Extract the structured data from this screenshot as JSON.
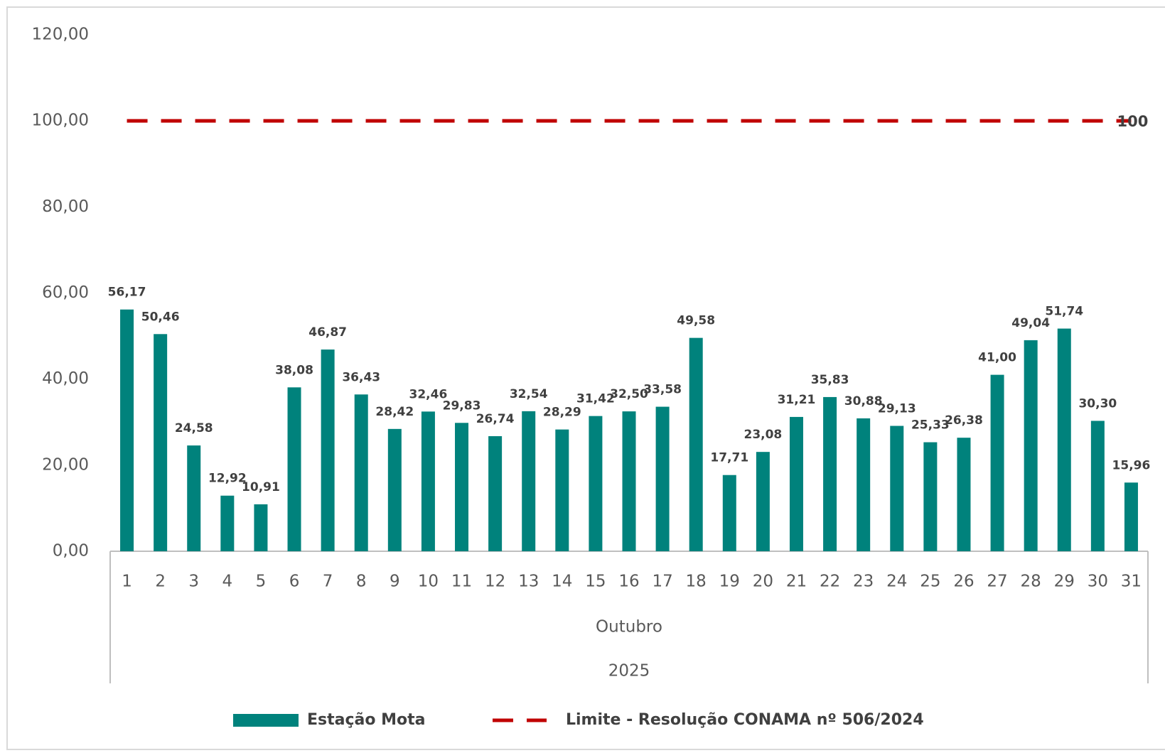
{
  "chart_data": {
    "type": "bar",
    "categories": [
      "1",
      "2",
      "3",
      "4",
      "5",
      "6",
      "7",
      "8",
      "9",
      "10",
      "11",
      "12",
      "13",
      "14",
      "15",
      "16",
      "17",
      "18",
      "19",
      "20",
      "21",
      "22",
      "23",
      "24",
      "25",
      "26",
      "27",
      "28",
      "29",
      "30",
      "31"
    ],
    "category_group": "Outubro",
    "category_year": "2025",
    "series": [
      {
        "name": "Estação Mota",
        "type": "bar",
        "color": "#00827c",
        "values": [
          56.17,
          50.46,
          24.58,
          12.92,
          10.91,
          38.08,
          46.87,
          36.43,
          28.42,
          32.46,
          29.83,
          26.74,
          32.54,
          28.29,
          31.42,
          32.5,
          33.58,
          49.58,
          17.71,
          23.08,
          31.21,
          35.83,
          30.88,
          29.13,
          25.33,
          26.38,
          41.0,
          49.04,
          51.74,
          30.3,
          15.96
        ],
        "value_labels": [
          "56,17",
          "50,46",
          "24,58",
          "12,92",
          "10,91",
          "38,08",
          "46,87",
          "36,43",
          "28,42",
          "32,46",
          "29,83",
          "26,74",
          "32,54",
          "28,29",
          "31,42",
          "32,50",
          "33,58",
          "49,58",
          "17,71",
          "23,08",
          "31,21",
          "35,83",
          "30,88",
          "29,13",
          "25,33",
          "26,38",
          "41,00",
          "49,04",
          "51,74",
          "30,30",
          "15,96"
        ]
      },
      {
        "name": "Limite - Resolução CONAMA nº 506/2024",
        "type": "line",
        "color": "#c00000",
        "dashed": true,
        "values": [
          100,
          100,
          100,
          100,
          100,
          100,
          100,
          100,
          100,
          100,
          100,
          100,
          100,
          100,
          100,
          100,
          100,
          100,
          100,
          100,
          100,
          100,
          100,
          100,
          100,
          100,
          100,
          100,
          100,
          100,
          100
        ],
        "value_labels": [
          null,
          null,
          null,
          null,
          null,
          null,
          null,
          null,
          null,
          null,
          null,
          null,
          null,
          null,
          null,
          null,
          null,
          null,
          null,
          null,
          null,
          null,
          null,
          null,
          null,
          null,
          null,
          null,
          null,
          null,
          "100"
        ]
      }
    ],
    "ylim": [
      0,
      120
    ],
    "yticks": [
      {
        "value": 0,
        "label": "0,00"
      },
      {
        "value": 20,
        "label": "20,00"
      },
      {
        "value": 40,
        "label": "40,00"
      },
      {
        "value": 60,
        "label": "60,00"
      },
      {
        "value": 80,
        "label": "80,00"
      },
      {
        "value": 100,
        "label": "100,00"
      },
      {
        "value": 120,
        "label": "120,00"
      }
    ],
    "grid": false,
    "legend": "bottom"
  }
}
